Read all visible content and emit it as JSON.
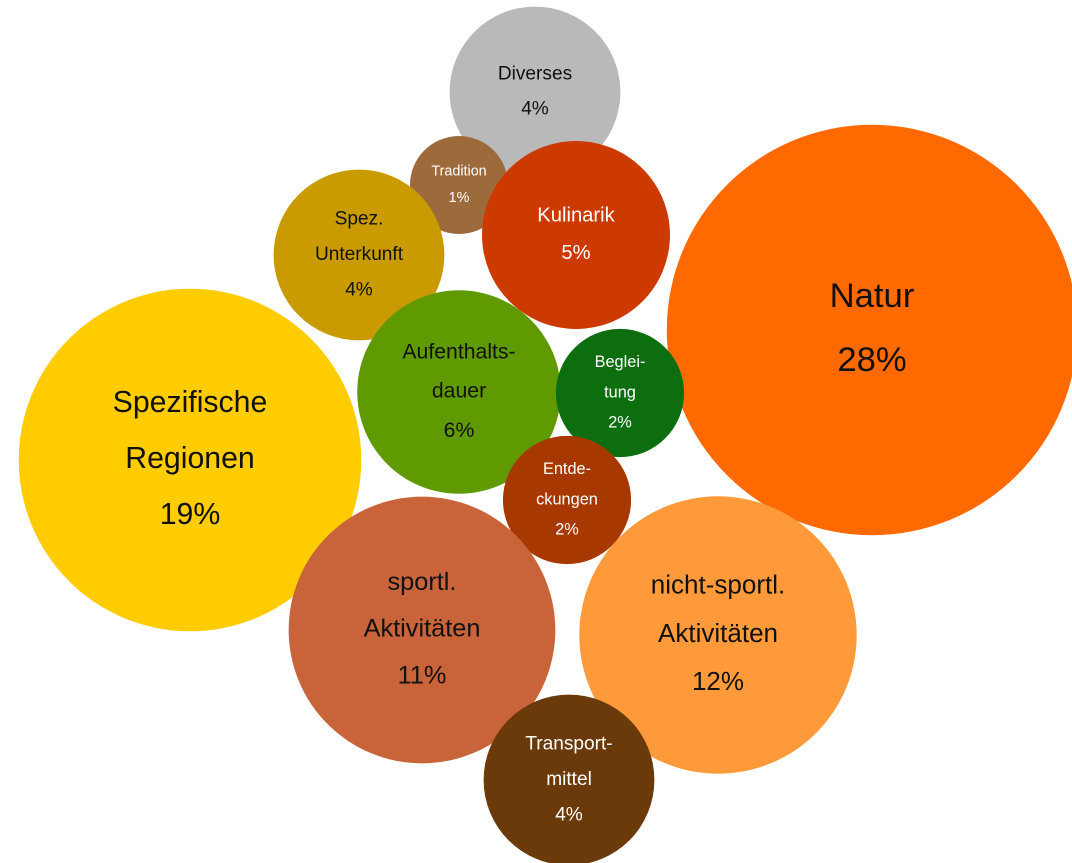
{
  "chart_data": {
    "type": "bubble",
    "labels": [
      [
        "Diverses"
      ],
      [
        "Tradition"
      ],
      [
        "Kulinarik"
      ],
      [
        "Spez.",
        "Unterkunft"
      ],
      [
        "Natur"
      ],
      [
        "Aufenthalts-",
        "dauer"
      ],
      [
        "Beglei-",
        "tung"
      ],
      [
        "Spezifische",
        "Regionen"
      ],
      [
        "Entde-",
        "ckungen"
      ],
      [
        "sportl.",
        "Aktivitäten"
      ],
      [
        "nicht-sportl.",
        "Aktivitäten"
      ],
      [
        "Transport-",
        "mittel"
      ]
    ],
    "values": [
      4,
      1,
      5,
      4,
      28,
      6,
      2,
      19,
      2,
      11,
      12,
      4
    ],
    "value_labels": [
      "4%",
      "1%",
      "5%",
      "4%",
      "28%",
      "6%",
      "2%",
      "19%",
      "2%",
      "11%",
      "12%",
      "4%"
    ],
    "colors": [
      "#b9b9b9",
      "#9c6a3b",
      "#cc3a00",
      "#c99b00",
      "#ff6a00",
      "#5f9a00",
      "#0d6e10",
      "#ffcc00",
      "#a63800",
      "#c9643a",
      "#ff9a3a",
      "#6b3a0a"
    ],
    "text_colors": [
      "#111111",
      "#ffffff",
      "#ffffff",
      "#111111",
      "#111111",
      "#111111",
      "#ffffff",
      "#111111",
      "#ffffff",
      "#111111",
      "#111111",
      "#ffffff"
    ]
  }
}
